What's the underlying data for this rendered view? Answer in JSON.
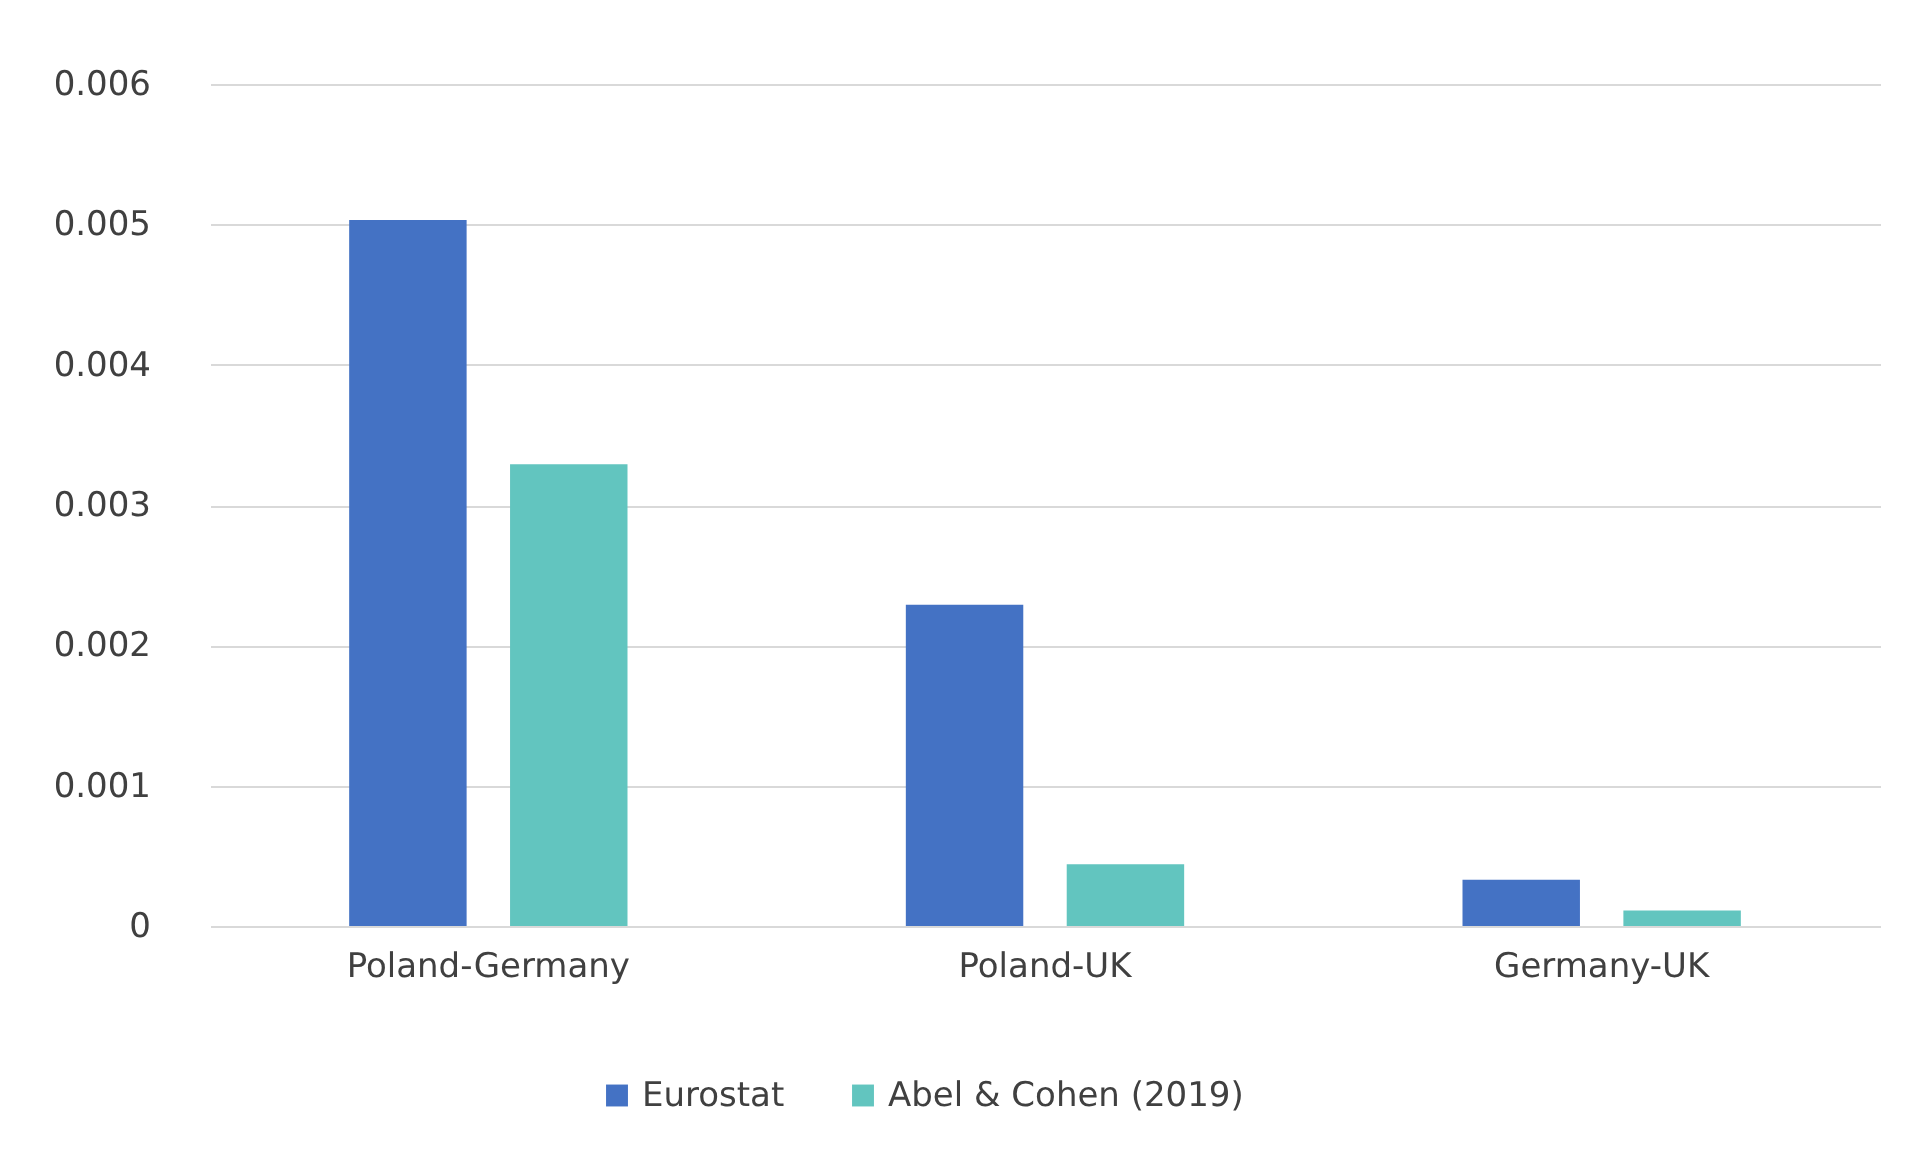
{
  "chart_data": {
    "type": "bar",
    "categories": [
      "Poland-Germany",
      "Poland-UK",
      "Germany-UK"
    ],
    "series": [
      {
        "name": "Eurostat",
        "color": "#4472c4",
        "values": [
          0.00503,
          0.00229,
          0.00033
        ]
      },
      {
        "name": "Abel & Cohen (2019)",
        "color": "#62c5bf",
        "values": [
          0.00329,
          0.00044,
          0.00011
        ]
      }
    ],
    "ylim": [
      0,
      0.006
    ],
    "yticks": [
      0,
      0.001,
      0.002,
      0.003,
      0.004,
      0.005,
      0.006
    ],
    "grid": "y",
    "legend": "bottom"
  }
}
